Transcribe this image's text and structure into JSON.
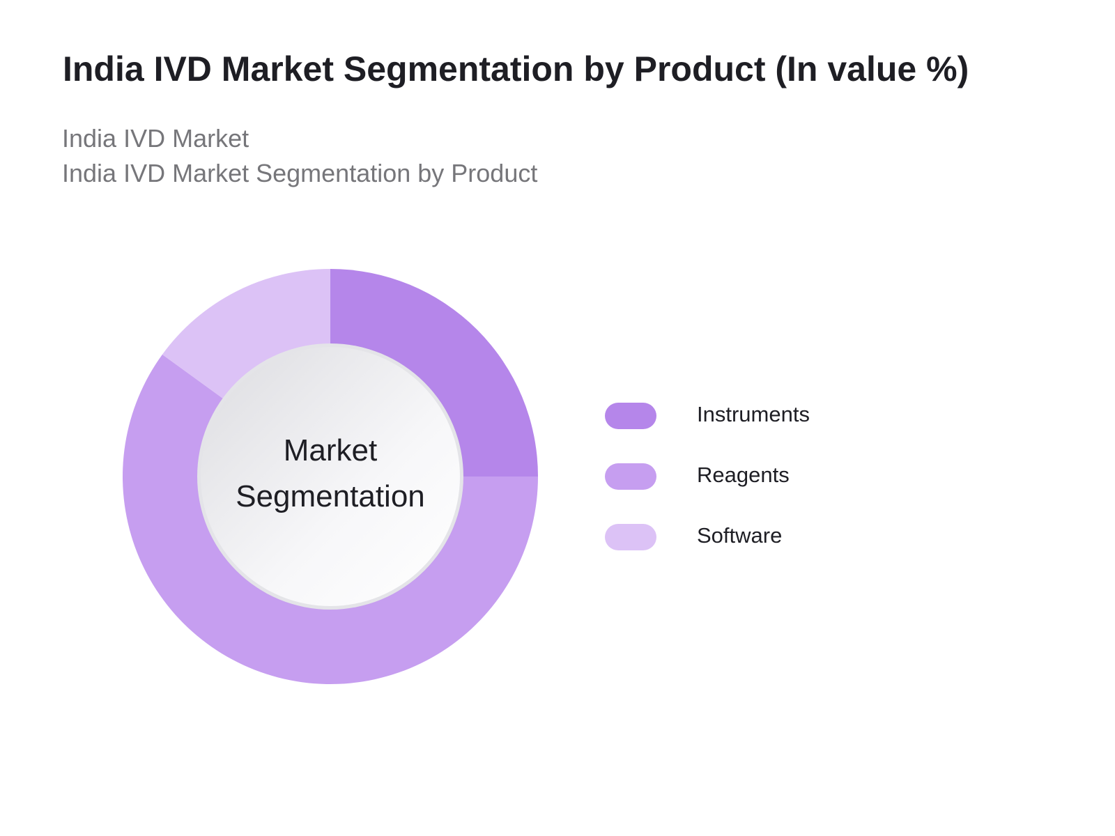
{
  "chart_data": {
    "type": "donut",
    "title": "India IVD Market Segmentation by Product (In value %)",
    "subtitles": [
      "India IVD Market",
      "India IVD Market Segmentation by Product"
    ],
    "center_label": "Market Segmentation",
    "categories": [
      "Instruments",
      "Reagents",
      "Software"
    ],
    "values": [
      25,
      60,
      15
    ],
    "colors": [
      "#b586ea",
      "#c69ef0",
      "#dcc2f6"
    ]
  }
}
